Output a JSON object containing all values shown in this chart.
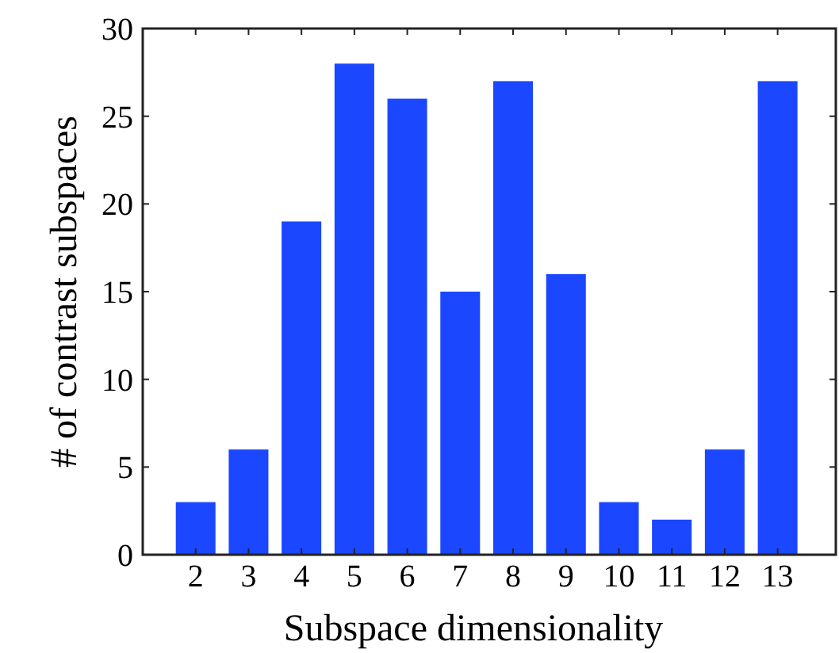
{
  "chart_data": {
    "type": "bar",
    "xlabel": "Subspace dimensionality",
    "ylabel": "# of contrast subspaces",
    "categories": [
      "2",
      "3",
      "4",
      "5",
      "6",
      "7",
      "8",
      "9",
      "10",
      "11",
      "12",
      "13"
    ],
    "values": [
      3,
      6,
      19,
      28,
      26,
      15,
      27,
      16,
      3,
      2,
      6,
      27
    ],
    "color": "#1a47ff",
    "ylim": [
      0,
      30
    ],
    "yticks": [
      0,
      5,
      10,
      15,
      20,
      25,
      30
    ],
    "grid": false
  }
}
